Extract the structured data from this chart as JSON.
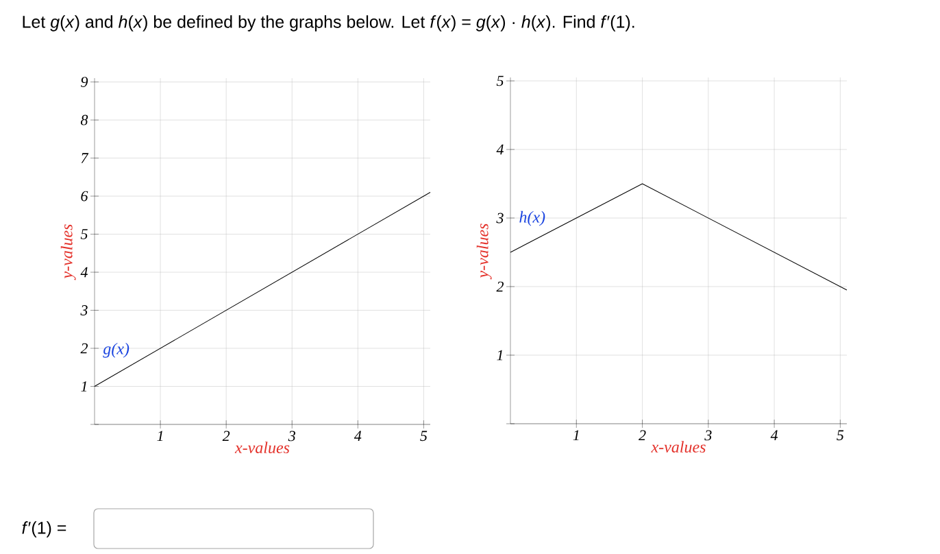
{
  "chart_data": [
    {
      "type": "line",
      "title": "Let *g*(*x*) and *h*(*x*) be defined by the graphs below. Let *f*(*x*) = *g*(*x*) · *h*(*x*). Find *f*′(1).",
      "xlabel": "x-values",
      "ylabel": "y-values",
      "series": [
        {
          "name": "g(x)",
          "x": [
            0,
            5.1
          ],
          "values": [
            1,
            6.1
          ],
          "color": "#000000"
        }
      ],
      "xlim": [
        0,
        5.1
      ],
      "ylim": [
        0,
        9.1
      ],
      "xticks": [
        1,
        2,
        3,
        4,
        5
      ],
      "yticks": [
        {
          "value": 0,
          "label": null
        },
        1,
        2,
        3,
        4,
        5,
        6,
        7,
        8,
        9
      ],
      "grid": true,
      "annotations": [
        "*f*′(1) ="
      ]
    },
    {
      "type": "line",
      "xlabel": "x-values",
      "ylabel": "y-values",
      "series": [
        {
          "name": "h(x)",
          "x": [
            0,
            2,
            5.1
          ],
          "values": [
            2.5,
            3.5,
            1.95
          ],
          "color": "#000000"
        }
      ],
      "xlim": [
        0,
        5.1
      ],
      "ylim": [
        0,
        5.05
      ],
      "xticks": [
        1,
        2,
        3,
        4,
        5
      ],
      "yticks": [
        {
          "value": 0,
          "label": null
        },
        1,
        2,
        3,
        4,
        5
      ],
      "grid": true
    }
  ]
}
